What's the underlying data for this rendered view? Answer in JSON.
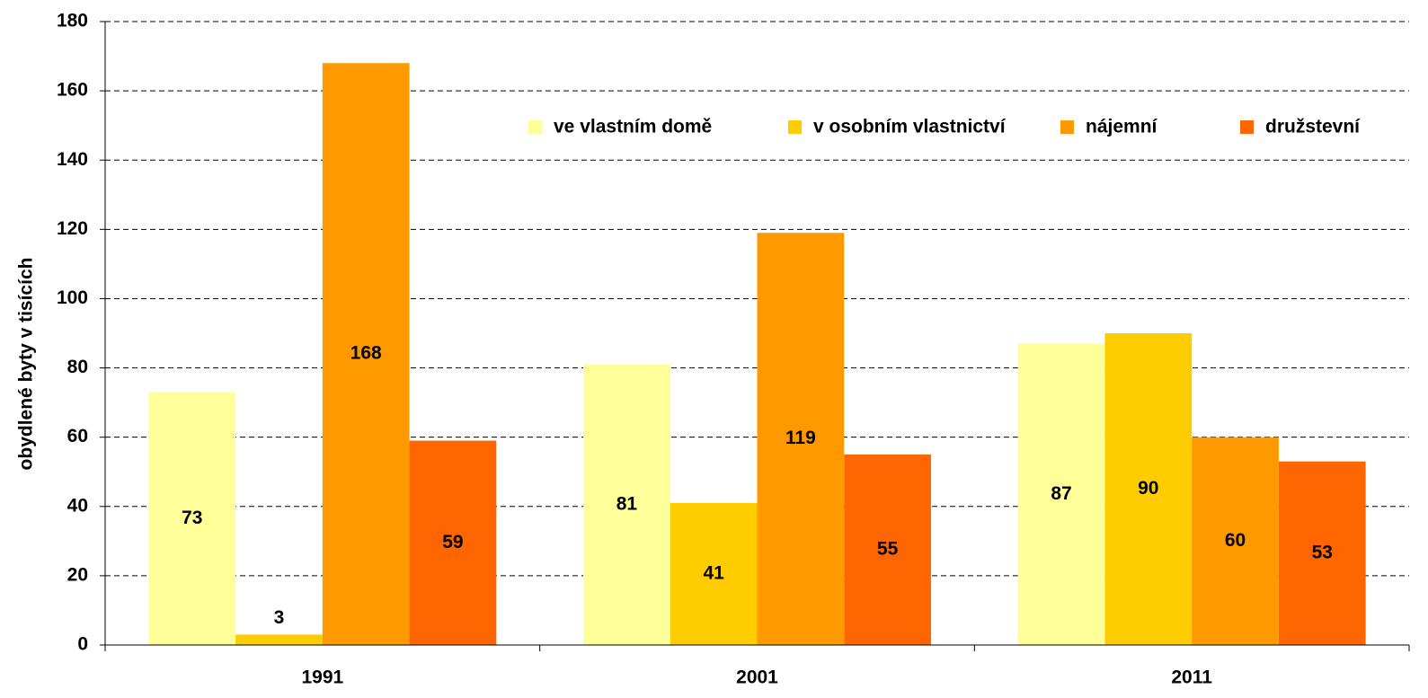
{
  "chart_data": {
    "type": "bar",
    "y_label": "obydlené byty v tisících",
    "categories": [
      "1991",
      "2001",
      "2011"
    ],
    "series": [
      {
        "name": "ve vlastním domě",
        "color": "#ffff99",
        "values": [
          73,
          81,
          87
        ]
      },
      {
        "name": "v osobním vlastnictví",
        "color": "#ffcc00",
        "values": [
          3,
          41,
          90
        ]
      },
      {
        "name": "nájemní",
        "color": "#ff9900",
        "values": [
          168,
          119,
          60
        ]
      },
      {
        "name": "družstevní",
        "color": "#ff6600",
        "values": [
          59,
          55,
          53
        ]
      }
    ],
    "ylim": [
      0,
      180
    ],
    "yticks": [
      0,
      20,
      40,
      60,
      80,
      100,
      120,
      140,
      160,
      180
    ],
    "grid": true,
    "legend": "top-right"
  }
}
